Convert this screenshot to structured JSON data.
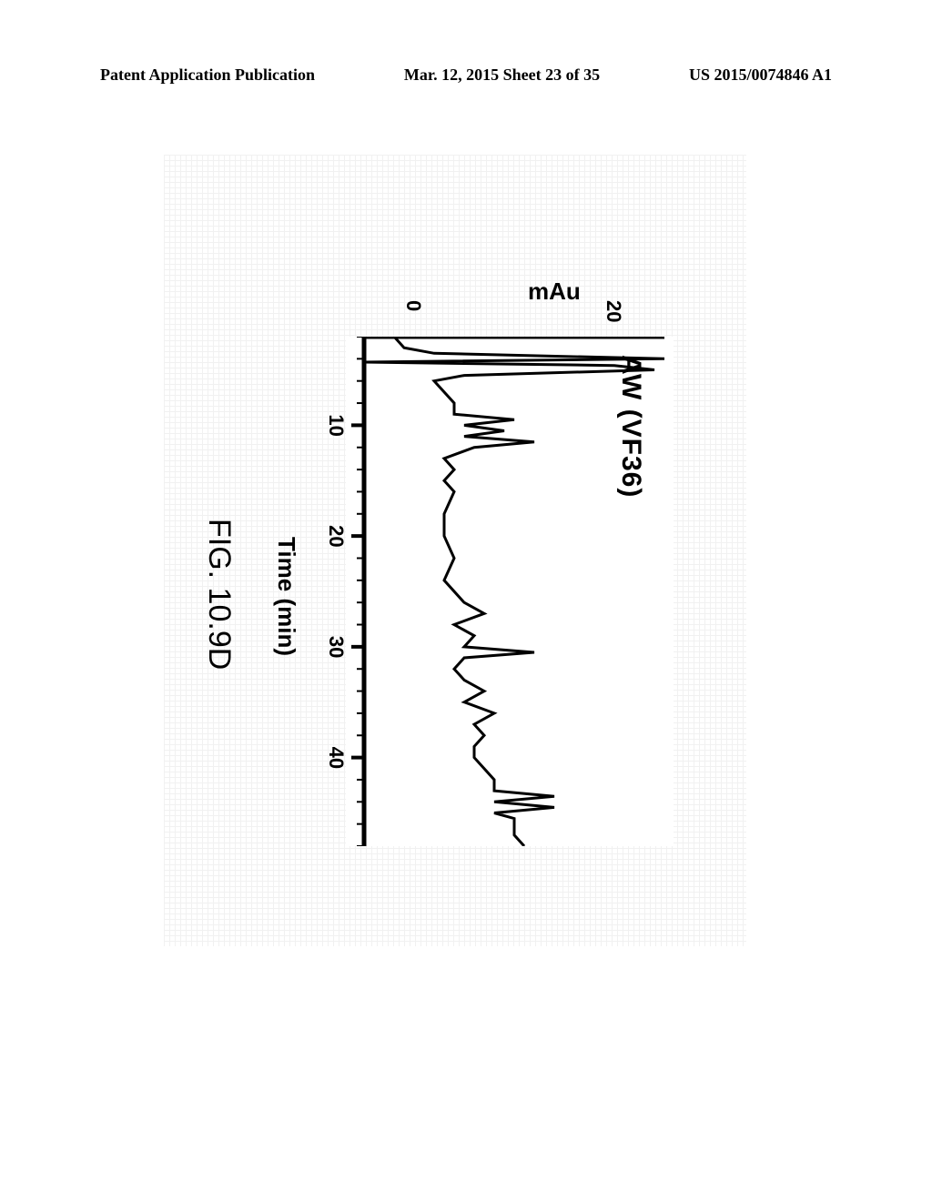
{
  "header": {
    "left": "Patent Application Publication",
    "center": "Mar. 12, 2015  Sheet 23 of 35",
    "right": "US 2015/0074846 A1"
  },
  "chart": {
    "type": "line",
    "title": "AW (VF36)",
    "title_fontsize": 30,
    "xlabel": "Time (min)",
    "ylabel": "mAu",
    "label_fontsize": 26,
    "xlim": [
      2,
      48
    ],
    "ylim": [
      -5,
      25
    ],
    "x_major_ticks": [
      10,
      20,
      30,
      40
    ],
    "x_minor_step": 2,
    "y_ticks": [
      0,
      20
    ],
    "background_color": "#ffffff",
    "grid_color": "#d9d9d9",
    "axis_color": "#000000",
    "trace_color": "#000000",
    "line_width": 3,
    "axis_width": 5,
    "series": {
      "x": [
        2,
        3,
        3.5,
        4,
        4.3,
        4.6,
        5,
        5.5,
        6,
        7,
        8,
        9,
        9.5,
        10,
        10.5,
        11,
        11.5,
        12,
        13,
        14,
        15,
        16,
        18,
        20,
        22,
        24,
        26,
        27,
        28,
        29,
        30,
        30.5,
        31,
        32,
        33,
        34,
        35,
        36,
        37,
        38,
        39,
        40,
        41,
        42,
        43,
        43.5,
        44,
        44.5,
        45,
        45.5,
        46,
        47,
        48
      ],
      "y": [
        -2,
        -1,
        2,
        25,
        -5,
        20,
        24,
        5,
        2,
        3,
        4,
        4,
        10,
        5,
        9,
        5,
        12,
        6,
        3,
        4,
        3,
        4,
        3,
        3,
        4,
        3,
        5,
        7,
        4,
        6,
        5,
        12,
        5,
        4,
        5,
        7,
        5,
        8,
        6,
        7,
        6,
        6,
        7,
        8,
        8,
        14,
        8,
        14,
        8,
        10,
        10,
        10,
        11
      ]
    }
  },
  "figure_caption": "FIG. 10.9D"
}
